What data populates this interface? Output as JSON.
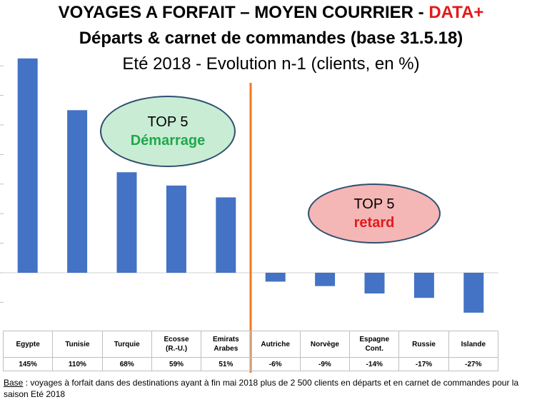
{
  "title": {
    "line1": "VOYAGES A FORFAIT – MOYEN COURRIER - ",
    "line1_accent": "DATA+",
    "line2": "Départs & carnet de commandes (base 31.5.18)",
    "line3": "Eté 2018 - Evolution n-1 (clients, en %)"
  },
  "callouts": {
    "top": {
      "line1": "TOP 5",
      "line2": "Démarrage"
    },
    "bottom": {
      "line1": "TOP 5",
      "line2": "retard"
    }
  },
  "colors": {
    "bar": "#4472c4",
    "divider": "#f07820",
    "accent_red": "#e31a1a",
    "accent_green": "#1fa84a"
  },
  "chart_data": {
    "type": "bar",
    "categories": [
      "Egypte",
      "Tunisie",
      "Turquie",
      "Ecosse (R.-U.)",
      "Emirats Arabes",
      "Autriche",
      "Norvège",
      "Espagne Cont.",
      "Russie",
      "Islande"
    ],
    "values": [
      145,
      110,
      68,
      59,
      51,
      -6,
      -9,
      -14,
      -17,
      -27
    ],
    "value_labels": [
      "145%",
      "110%",
      "68%",
      "59%",
      "51%",
      "-6%",
      "-9%",
      "-14%",
      "-17%",
      "-27%"
    ],
    "ylim": [
      -40,
      150
    ],
    "grid": false,
    "divider_after_index": 4
  },
  "table": {
    "names": [
      [
        "Egypte"
      ],
      [
        "Tunisie"
      ],
      [
        "Turquie"
      ],
      [
        "Ecosse",
        "(R.-U.)"
      ],
      [
        "Emirats",
        "Arabes"
      ],
      [
        "Autriche"
      ],
      [
        "Norvège"
      ],
      [
        "Espagne",
        "Cont."
      ],
      [
        "Russie"
      ],
      [
        "Islande"
      ]
    ]
  },
  "footnote": {
    "label": "Base",
    "text": " : voyages à forfait dans des destinations ayant à fin mai 2018 plus de 2 500 clients en départs et en carnet de commandes pour la saison Eté 2018"
  }
}
